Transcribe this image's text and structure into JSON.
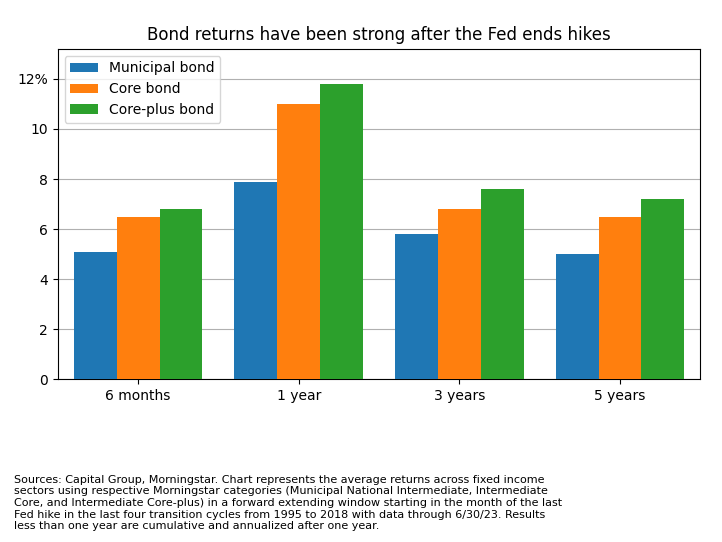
{
  "chart_data": {
    "type": "bar",
    "title": "Bond returns have been strong after the Fed ends hikes",
    "categories": [
      "6 months",
      "1 year",
      "3 years",
      "5 years"
    ],
    "series": [
      {
        "name": "Municipal bond",
        "values": [
          5.1,
          7.9,
          5.8,
          5.0
        ]
      },
      {
        "name": "Core bond",
        "values": [
          6.5,
          11.0,
          6.8,
          6.5
        ]
      },
      {
        "name": "Core-plus bond",
        "values": [
          6.8,
          11.8,
          7.6,
          7.2
        ]
      }
    ],
    "ylim": [
      0,
      13.2
    ],
    "yticks": [
      0,
      2,
      4,
      6,
      8,
      10,
      {
        "value": 12,
        "label": "12%"
      }
    ],
    "grid": true,
    "legend": "upper left",
    "annotations": [
      "Sources: Capital Group, Morningstar. Chart represents the average returns across fixed income\nsectors using respective Morningstar categories (Municipal National Intermediate, Intermediate\nCore, and Intermediate Core-plus) in a forward extending window starting in the month of the last\nFed hike in the last four transition cycles from 1995 to 2018 with data through 6/30/23. Results\nless than one year are cumulative and annualized after one year."
    ]
  }
}
